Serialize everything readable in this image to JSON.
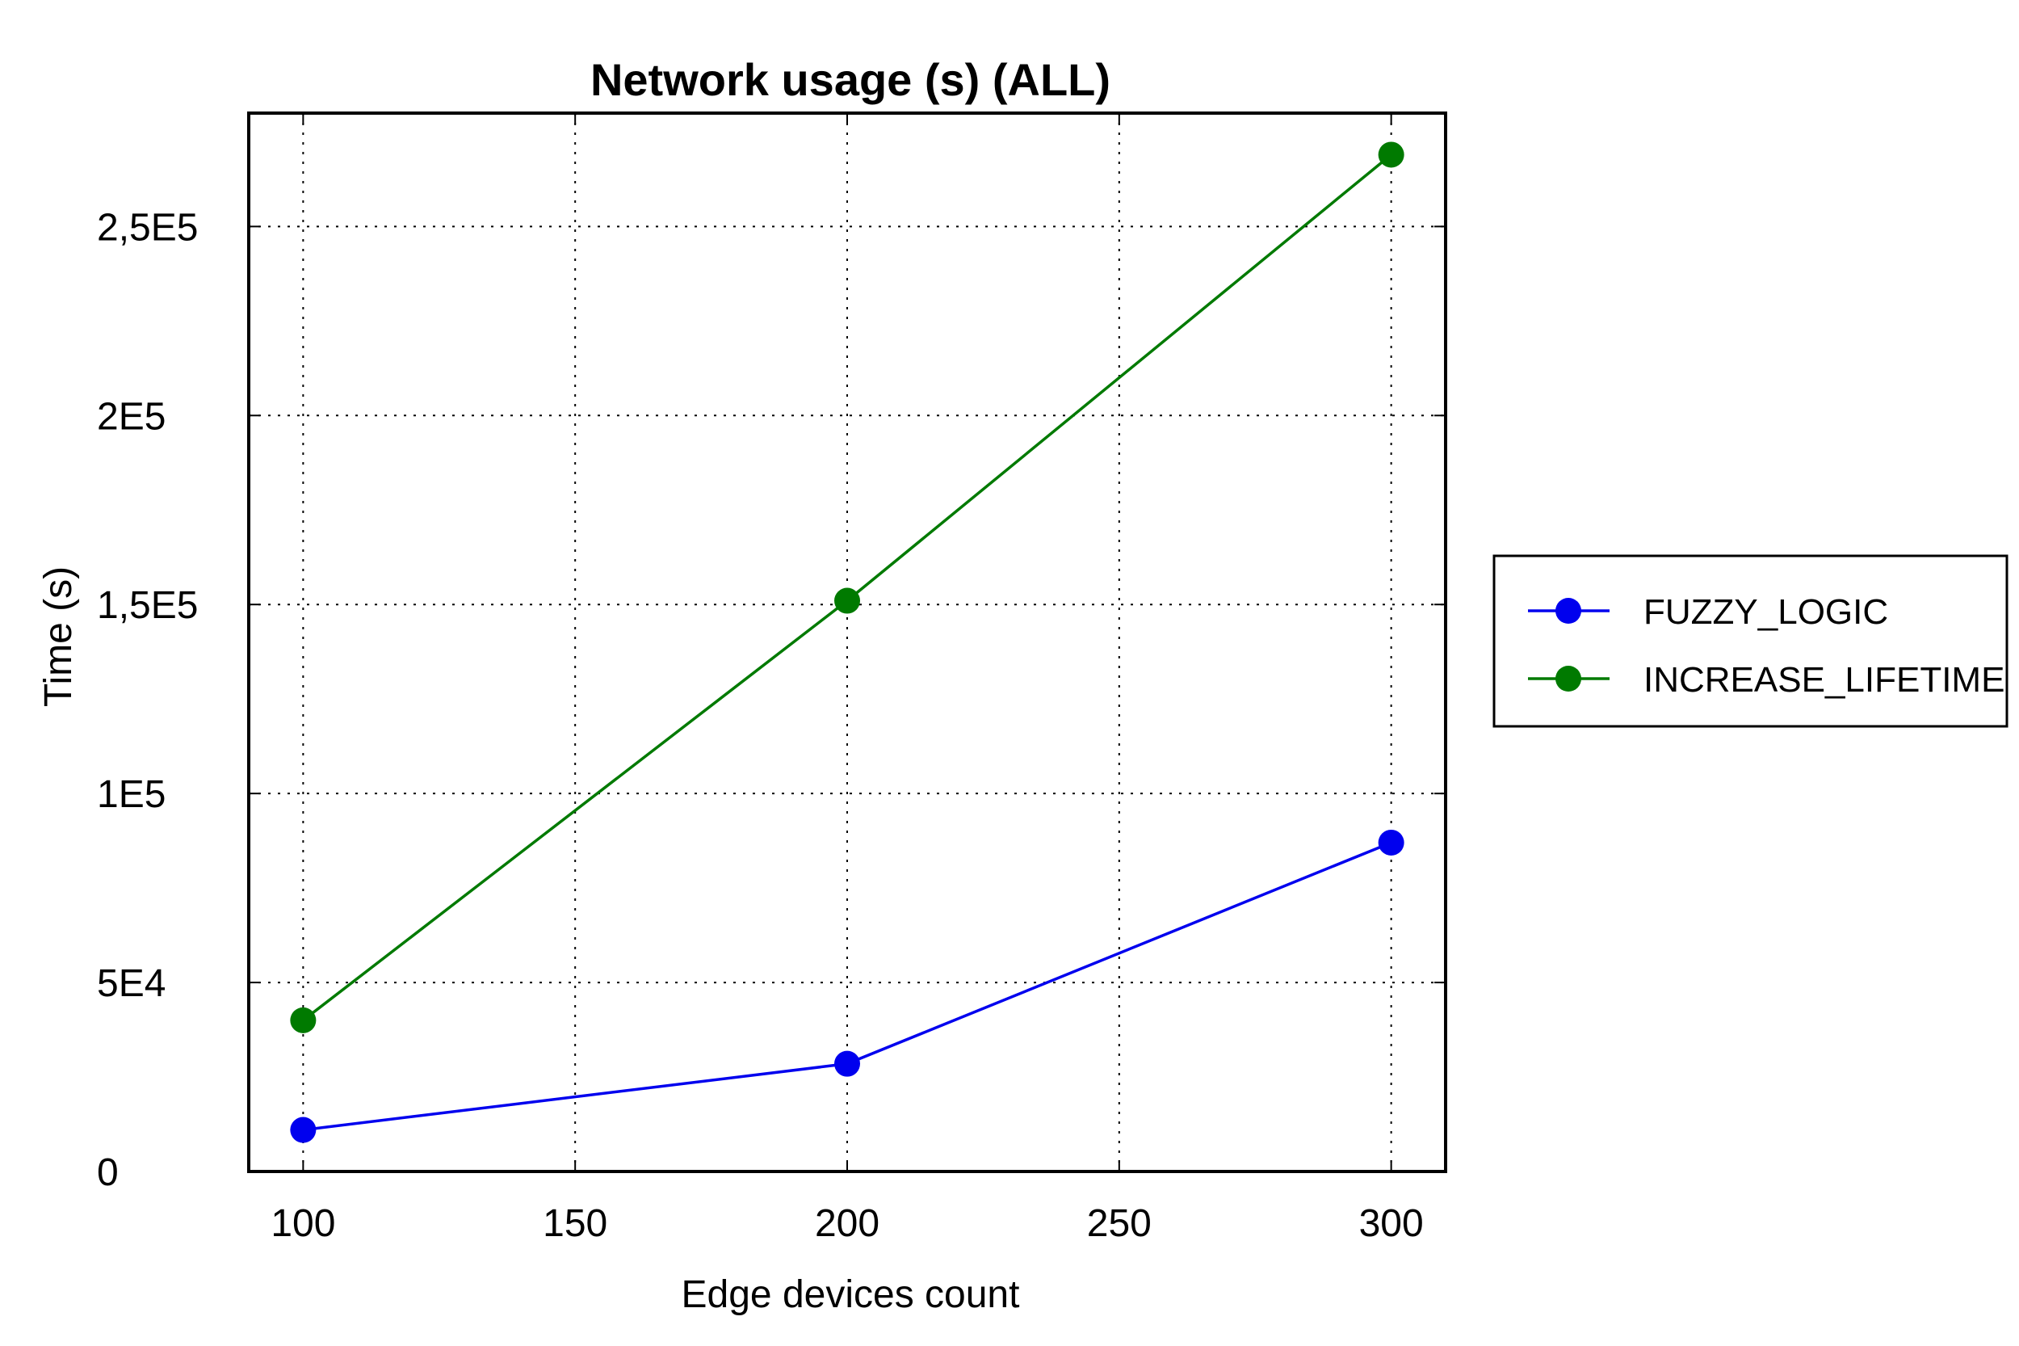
{
  "chart_data": {
    "type": "line",
    "title": "Network usage (s) (ALL)",
    "xlabel": "Edge devices count",
    "ylabel": "Time (s)",
    "x": [
      100,
      200,
      300
    ],
    "xlim": [
      90,
      310
    ],
    "ylim": [
      0,
      280000
    ],
    "x_ticks": [
      100,
      150,
      200,
      250,
      300
    ],
    "x_tick_labels": [
      "100",
      "150",
      "200",
      "250",
      "300"
    ],
    "y_ticks": [
      0,
      50000,
      100000,
      150000,
      200000,
      250000
    ],
    "y_tick_labels": [
      "0",
      "5E4",
      "1E5",
      "1,5E5",
      "2E5",
      "2,5E5"
    ],
    "grid": true,
    "legend_position": "right",
    "series": [
      {
        "name": "FUZZY_LOGIC",
        "color": "#0000ee",
        "values": [
          11000,
          28500,
          87000
        ]
      },
      {
        "name": "INCREASE_LIFETIME",
        "color": "#007a00",
        "values": [
          40000,
          151000,
          269000
        ]
      }
    ]
  }
}
